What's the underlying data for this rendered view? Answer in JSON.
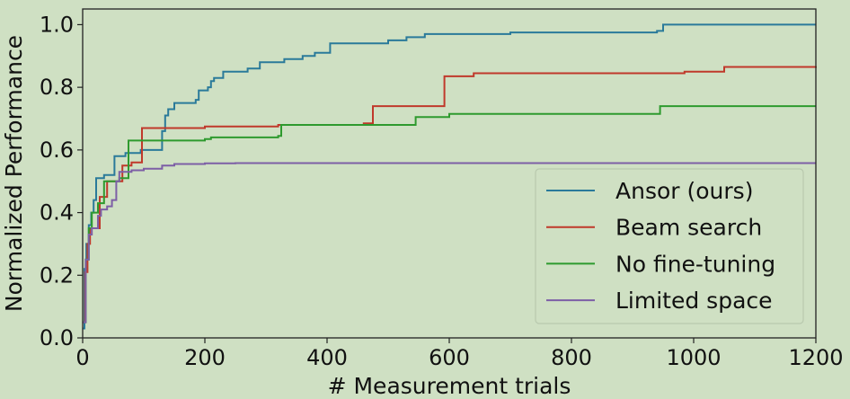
{
  "chart_data": {
    "type": "line",
    "title": "",
    "xlabel": "# Measurement trials",
    "ylabel": "Normalized Performance",
    "xlim": [
      0,
      1200
    ],
    "ylim": [
      0,
      1.05
    ],
    "xticks": [
      0,
      200,
      400,
      600,
      800,
      1000,
      1200
    ],
    "yticks": [
      0.0,
      0.2,
      0.4,
      0.6,
      0.8,
      1.0
    ],
    "xtick_labels": [
      "0",
      "200",
      "400",
      "600",
      "800",
      "1000",
      "1200"
    ],
    "ytick_labels": [
      "0.0",
      "0.2",
      "0.4",
      "0.6",
      "0.8",
      "1.0"
    ],
    "grid": false,
    "legend_position": "lower-right",
    "colors": {
      "background": "#cfe0c3",
      "axes": "#222222"
    },
    "series": [
      {
        "name": "Ansor (ours)",
        "color": "#2a7a9a",
        "points": [
          [
            0,
            0.03
          ],
          [
            3,
            0.22
          ],
          [
            6,
            0.3
          ],
          [
            10,
            0.36
          ],
          [
            14,
            0.4
          ],
          [
            18,
            0.44
          ],
          [
            22,
            0.51
          ],
          [
            30,
            0.51
          ],
          [
            35,
            0.52
          ],
          [
            52,
            0.58
          ],
          [
            70,
            0.59
          ],
          [
            95,
            0.6
          ],
          [
            128,
            0.6
          ],
          [
            130,
            0.66
          ],
          [
            135,
            0.71
          ],
          [
            140,
            0.73
          ],
          [
            150,
            0.75
          ],
          [
            185,
            0.76
          ],
          [
            190,
            0.79
          ],
          [
            205,
            0.8
          ],
          [
            210,
            0.82
          ],
          [
            215,
            0.83
          ],
          [
            230,
            0.85
          ],
          [
            270,
            0.86
          ],
          [
            290,
            0.88
          ],
          [
            330,
            0.89
          ],
          [
            345,
            0.89
          ],
          [
            360,
            0.9
          ],
          [
            380,
            0.91
          ],
          [
            405,
            0.94
          ],
          [
            500,
            0.95
          ],
          [
            530,
            0.96
          ],
          [
            560,
            0.97
          ],
          [
            700,
            0.975
          ],
          [
            940,
            0.98
          ],
          [
            950,
            1.0
          ],
          [
            1200,
            1.0
          ]
        ]
      },
      {
        "name": "Beam search",
        "color": "#c0392b",
        "points": [
          [
            0,
            0.05
          ],
          [
            4,
            0.21
          ],
          [
            8,
            0.3
          ],
          [
            12,
            0.35
          ],
          [
            20,
            0.35
          ],
          [
            28,
            0.45
          ],
          [
            40,
            0.5
          ],
          [
            65,
            0.55
          ],
          [
            80,
            0.56
          ],
          [
            97,
            0.67
          ],
          [
            140,
            0.67
          ],
          [
            200,
            0.675
          ],
          [
            320,
            0.68
          ],
          [
            460,
            0.685
          ],
          [
            475,
            0.74
          ],
          [
            590,
            0.74
          ],
          [
            592,
            0.835
          ],
          [
            640,
            0.845
          ],
          [
            985,
            0.85
          ],
          [
            1050,
            0.865
          ],
          [
            1200,
            0.867
          ]
        ]
      },
      {
        "name": "No fine-tuning",
        "color": "#2e9a2e",
        "points": [
          [
            0,
            0.05
          ],
          [
            5,
            0.25
          ],
          [
            10,
            0.35
          ],
          [
            15,
            0.4
          ],
          [
            25,
            0.43
          ],
          [
            35,
            0.5
          ],
          [
            60,
            0.51
          ],
          [
            75,
            0.63
          ],
          [
            140,
            0.63
          ],
          [
            200,
            0.635
          ],
          [
            210,
            0.64
          ],
          [
            320,
            0.645
          ],
          [
            325,
            0.68
          ],
          [
            540,
            0.68
          ],
          [
            545,
            0.705
          ],
          [
            600,
            0.715
          ],
          [
            940,
            0.715
          ],
          [
            945,
            0.74
          ],
          [
            1200,
            0.74
          ]
        ]
      },
      {
        "name": "Limited space",
        "color": "#7d5fa6",
        "points": [
          [
            0,
            0.05
          ],
          [
            5,
            0.25
          ],
          [
            10,
            0.33
          ],
          [
            15,
            0.35
          ],
          [
            25,
            0.39
          ],
          [
            30,
            0.41
          ],
          [
            40,
            0.42
          ],
          [
            48,
            0.44
          ],
          [
            55,
            0.5
          ],
          [
            60,
            0.53
          ],
          [
            80,
            0.535
          ],
          [
            100,
            0.54
          ],
          [
            130,
            0.55
          ],
          [
            150,
            0.555
          ],
          [
            200,
            0.557
          ],
          [
            250,
            0.558
          ],
          [
            400,
            0.558
          ],
          [
            1200,
            0.558
          ]
        ]
      }
    ]
  }
}
